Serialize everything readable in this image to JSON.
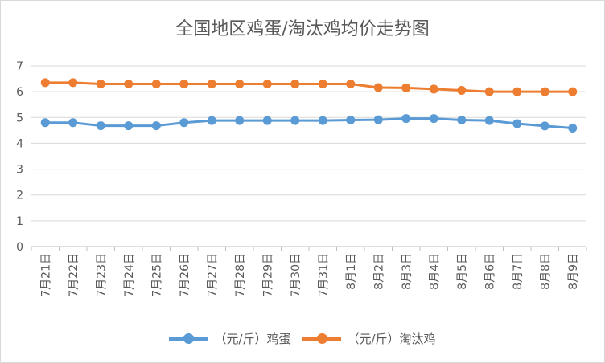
{
  "chart_data": {
    "type": "line",
    "title": "全国地区鸡蛋/淘汰鸡均价走势图",
    "categories": [
      "7月21日",
      "7月22日",
      "7月23日",
      "7月24日",
      "7月25日",
      "7月26日",
      "7月27日",
      "7月28日",
      "7月29日",
      "7月30日",
      "7月31日",
      "8月1日",
      "8月2日",
      "8月3日",
      "8月4日",
      "8月5日",
      "8月6日",
      "8月7日",
      "8月8日",
      "8月9日"
    ],
    "series": [
      {
        "name": "（元/斤）鸡蛋",
        "color": "#5b9bd5",
        "values": [
          4.8,
          4.8,
          4.68,
          4.68,
          4.68,
          4.8,
          4.88,
          4.88,
          4.88,
          4.88,
          4.88,
          4.9,
          4.91,
          4.96,
          4.96,
          4.9,
          4.88,
          4.76,
          4.67,
          4.59
        ]
      },
      {
        "name": "（元/斤）淘汰鸡",
        "color": "#ed7d31",
        "values": [
          6.35,
          6.35,
          6.3,
          6.3,
          6.3,
          6.3,
          6.3,
          6.3,
          6.3,
          6.3,
          6.3,
          6.3,
          6.16,
          6.15,
          6.1,
          6.05,
          6.0,
          6.0,
          6.0,
          6.0
        ]
      }
    ],
    "yticks": [
      "0",
      "1",
      "2",
      "3",
      "4",
      "5",
      "6",
      "7"
    ],
    "ylim": [
      0,
      7
    ],
    "grid": true,
    "legend": "bottom"
  }
}
